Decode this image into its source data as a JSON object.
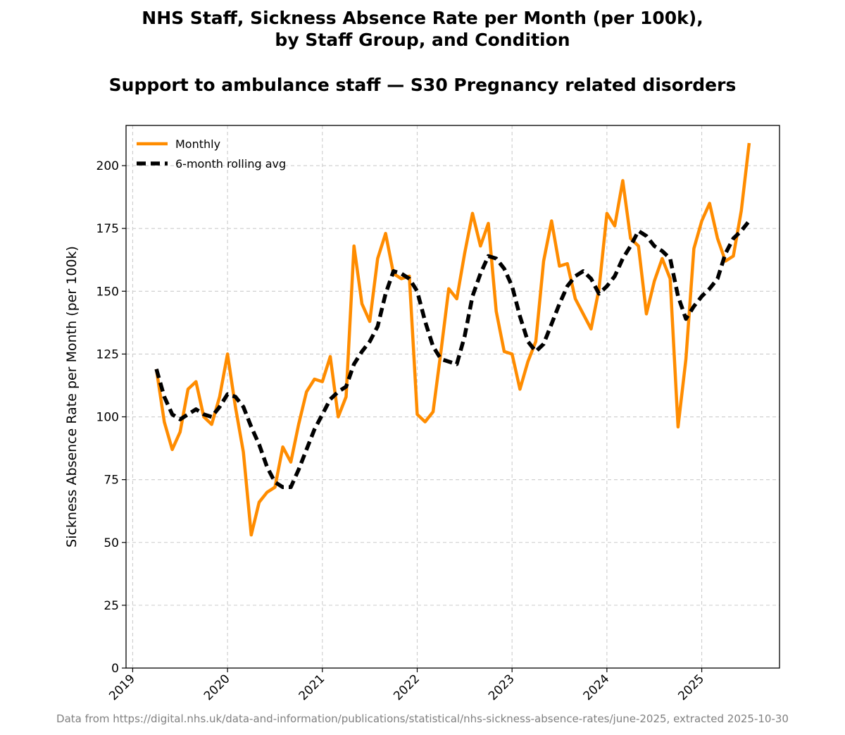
{
  "chart_data": {
    "type": "line",
    "title": "NHS Staff, Sickness Absence Rate per Month (per 100k),",
    "title_line2": "by Staff Group, and Condition",
    "subtitle": "Support to ambulance staff — S30 Pregnancy related disorders",
    "xlabel": "",
    "ylabel": "Sickness Absence Rate per Month (per 100k)",
    "ylim": [
      0,
      216
    ],
    "yticks": [
      0,
      25,
      50,
      75,
      100,
      125,
      150,
      175,
      200
    ],
    "xlim": [
      2018.93,
      2025.82
    ],
    "xticks": [
      2019,
      2020,
      2021,
      2022,
      2023,
      2024,
      2025
    ],
    "xtick_labels": [
      "2019",
      "2020",
      "2021",
      "2022",
      "2023",
      "2024",
      "2025"
    ],
    "grid": true,
    "legend_position": "top-left",
    "colors": {
      "monthly": "#ff8c00",
      "rolling": "#000000",
      "grid": "#cccccc"
    },
    "series": [
      {
        "name": "Monthly",
        "style": "solid",
        "x": [
          2019.25,
          2019.333,
          2019.417,
          2019.5,
          2019.583,
          2019.667,
          2019.75,
          2019.833,
          2019.917,
          2020.0,
          2020.083,
          2020.167,
          2020.25,
          2020.333,
          2020.417,
          2020.5,
          2020.583,
          2020.667,
          2020.75,
          2020.833,
          2020.917,
          2021.0,
          2021.083,
          2021.167,
          2021.25,
          2021.333,
          2021.417,
          2021.5,
          2021.583,
          2021.667,
          2021.75,
          2021.833,
          2021.917,
          2022.0,
          2022.083,
          2022.167,
          2022.25,
          2022.333,
          2022.417,
          2022.5,
          2022.583,
          2022.667,
          2022.75,
          2022.833,
          2022.917,
          2023.0,
          2023.083,
          2023.167,
          2023.25,
          2023.333,
          2023.417,
          2023.5,
          2023.583,
          2023.667,
          2023.75,
          2023.833,
          2023.917,
          2024.0,
          2024.083,
          2024.167,
          2024.25,
          2024.333,
          2024.417,
          2024.5,
          2024.583,
          2024.667,
          2024.75,
          2024.833,
          2024.917,
          2025.0,
          2025.083,
          2025.167,
          2025.25,
          2025.333,
          2025.417,
          2025.5
        ],
        "values": [
          119,
          98,
          87,
          94,
          111,
          114,
          100,
          97,
          108,
          125,
          104,
          86,
          53,
          66,
          70,
          72,
          88,
          82,
          97,
          110,
          115,
          114,
          124,
          100,
          108,
          168,
          145,
          138,
          163,
          173,
          157,
          155,
          156,
          101,
          98,
          102,
          126,
          151,
          147,
          165,
          181,
          168,
          177,
          142,
          126,
          125,
          111,
          122,
          130,
          162,
          178,
          160,
          161,
          147,
          141,
          135,
          151,
          181,
          176,
          194,
          171,
          168,
          141,
          154,
          163,
          155,
          96,
          123,
          167,
          178,
          185,
          171,
          162,
          164,
          182,
          209
        ]
      },
      {
        "name": "6-month rolling avg",
        "style": "dashed",
        "x": [
          2019.25,
          2019.333,
          2019.417,
          2019.5,
          2019.583,
          2019.667,
          2019.75,
          2019.833,
          2019.917,
          2020.0,
          2020.083,
          2020.167,
          2020.25,
          2020.333,
          2020.417,
          2020.5,
          2020.583,
          2020.667,
          2020.75,
          2020.833,
          2020.917,
          2021.0,
          2021.083,
          2021.167,
          2021.25,
          2021.333,
          2021.417,
          2021.5,
          2021.583,
          2021.667,
          2021.75,
          2021.833,
          2021.917,
          2022.0,
          2022.083,
          2022.167,
          2022.25,
          2022.333,
          2022.417,
          2022.5,
          2022.583,
          2022.667,
          2022.75,
          2022.833,
          2022.917,
          2023.0,
          2023.083,
          2023.167,
          2023.25,
          2023.333,
          2023.417,
          2023.5,
          2023.583,
          2023.667,
          2023.75,
          2023.833,
          2023.917,
          2024.0,
          2024.083,
          2024.167,
          2024.25,
          2024.333,
          2024.417,
          2024.5,
          2024.583,
          2024.667,
          2024.75,
          2024.833,
          2024.917,
          2025.0,
          2025.083,
          2025.167,
          2025.25,
          2025.333,
          2025.417,
          2025.5
        ],
        "values": [
          119,
          108,
          101,
          99,
          101,
          103,
          101,
          100,
          104,
          109,
          108,
          104,
          96,
          89,
          80,
          74,
          72,
          72,
          79,
          87,
          95,
          101,
          107,
          110,
          112,
          121,
          126,
          130,
          136,
          149,
          158,
          157,
          155,
          150,
          138,
          128,
          123,
          122,
          121,
          132,
          148,
          157,
          164,
          163,
          159,
          152,
          140,
          130,
          126,
          129,
          137,
          145,
          152,
          156,
          158,
          155,
          149,
          152,
          156,
          163,
          168,
          174,
          172,
          168,
          166,
          163,
          148,
          139,
          144,
          148,
          151,
          155,
          165,
          171,
          174,
          178
        ]
      }
    ]
  },
  "footer": "Data from https://digital.nhs.uk/data-and-information/publications/statistical/nhs-sickness-absence-rates/june-2025, extracted 2025-10-30"
}
